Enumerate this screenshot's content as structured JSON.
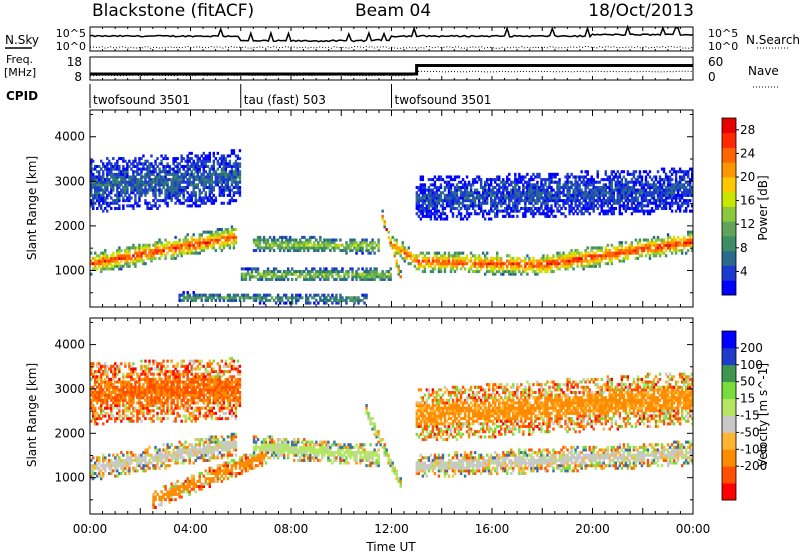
{
  "header": {
    "station": "Blackstone (fitACF)",
    "beam": "Beam 04",
    "date": "18/Oct/2013"
  },
  "top_panels": {
    "noise_left_label": "N.Sky",
    "noise_left_ticks": [
      "10^5",
      "10^0"
    ],
    "noise_right_ticks": [
      "10^5",
      "10^0"
    ],
    "noise_right_label": "N.Search",
    "freq_left_label_line1": "Freq.",
    "freq_left_label_line2": "[MHz]",
    "freq_left_ticks": [
      "18",
      "8"
    ],
    "nave_right_ticks": [
      "60",
      "0"
    ],
    "nave_right_label": "Nave",
    "cpid_label": "CPID",
    "cpid_segments": [
      {
        "start_hour": 0,
        "end_hour": 6,
        "label": "twofsound 3501"
      },
      {
        "start_hour": 6,
        "end_hour": 12,
        "label": "tau (fast) 503"
      },
      {
        "start_hour": 12,
        "end_hour": 24,
        "label": "twofsound 3501"
      }
    ]
  },
  "x_axis": {
    "label": "Time UT",
    "ticks": [
      "00:00",
      "04:00",
      "08:00",
      "12:00",
      "16:00",
      "20:00",
      "00:00"
    ]
  },
  "colors": {
    "power_scale": [
      "#0000ff",
      "#1c3ad0",
      "#2a6a8a",
      "#3c8c64",
      "#5fa45a",
      "#8cc83c",
      "#c8e600",
      "#ffc800",
      "#ff9600",
      "#ff6400",
      "#ff2800",
      "#e60000"
    ],
    "velocity_scale": [
      "#ff0000",
      "#ff5000",
      "#ff8c00",
      "#ffb432",
      "#c8c8c8",
      "#b4e664",
      "#78dc3c",
      "#3c9650",
      "#3c6ea0",
      "#1e3cc8",
      "#0000ff"
    ]
  },
  "chart_data": [
    {
      "type": "heatmap",
      "panel": "power",
      "xlabel": "Time UT",
      "ylabel": "Slant Range [km]",
      "xlim_hours": [
        0,
        24
      ],
      "ylim_km": [
        180,
        4600
      ],
      "yticks": [
        1000,
        2000,
        3000,
        4000
      ],
      "colorbar_label": "Power [dB]",
      "colorbar_ticks": [
        4,
        8,
        12,
        16,
        20,
        24,
        28
      ],
      "colorbar_range": [
        0,
        30
      ],
      "bands": [
        {
          "t_start": 0.0,
          "t_end": 5.8,
          "r_start": 1150,
          "r_end": 1750,
          "width": 500,
          "peak": 26
        },
        {
          "t_start": 6.0,
          "t_end": 12.0,
          "r_start": 900,
          "r_end": 900,
          "width": 300,
          "peak": 14
        },
        {
          "t_start": 6.5,
          "t_end": 11.5,
          "r_start": 1600,
          "r_end": 1550,
          "width": 350,
          "peak": 15
        },
        {
          "t_start": 3.5,
          "t_end": 11.0,
          "r_start": 400,
          "r_end": 350,
          "width": 220,
          "peak": 10
        },
        {
          "t_start": 11.6,
          "t_end": 12.4,
          "r_start": 2300,
          "r_end": 800,
          "width": 220,
          "peak": 26
        },
        {
          "t_start": 12.0,
          "t_end": 13.0,
          "r_start": 1600,
          "r_end": 1200,
          "width": 400,
          "peak": 24
        },
        {
          "t_start": 13.0,
          "t_end": 18.0,
          "r_start": 1200,
          "r_end": 1120,
          "width": 480,
          "peak": 26
        },
        {
          "t_start": 18.0,
          "t_end": 24.0,
          "r_start": 1120,
          "r_end": 1650,
          "width": 480,
          "peak": 27
        },
        {
          "t_start": 0.0,
          "t_end": 6.0,
          "r_start": 2900,
          "r_end": 3100,
          "width": 1200,
          "peak": 6
        },
        {
          "t_start": 13.0,
          "t_end": 24.0,
          "r_start": 2600,
          "r_end": 2800,
          "width": 1000,
          "peak": 5
        }
      ]
    },
    {
      "type": "heatmap",
      "panel": "velocity",
      "xlabel": "Time UT",
      "ylabel": "Slant Range [km]",
      "xlim_hours": [
        0,
        24
      ],
      "ylim_km": [
        180,
        4600
      ],
      "yticks": [
        1000,
        2000,
        3000,
        4000
      ],
      "colorbar_label": "Velocity [m s^-1]",
      "colorbar_ticks": [
        200,
        100,
        50,
        15,
        -15,
        -50,
        -100,
        -200
      ],
      "colorbar_range": [
        -250,
        250
      ],
      "bands": [
        {
          "t_start": 0.0,
          "t_end": 5.8,
          "r_start": 1200,
          "r_end": 1750,
          "width": 550,
          "vel": 0
        },
        {
          "t_start": 2.5,
          "t_end": 7.0,
          "r_start": 500,
          "r_end": 1500,
          "width": 420,
          "vel": -80
        },
        {
          "t_start": 6.5,
          "t_end": 11.5,
          "r_start": 1700,
          "r_end": 1500,
          "width": 500,
          "vel": 30
        },
        {
          "t_start": 11.0,
          "t_end": 12.4,
          "r_start": 2500,
          "r_end": 800,
          "width": 300,
          "vel": 40
        },
        {
          "t_start": 13.0,
          "t_end": 24.0,
          "r_start": 1250,
          "r_end": 1550,
          "width": 550,
          "vel": 0
        },
        {
          "t_start": 0.0,
          "t_end": 6.0,
          "r_start": 2900,
          "r_end": 3000,
          "width": 1400,
          "vel": -100
        },
        {
          "t_start": 13.0,
          "t_end": 24.0,
          "r_start": 2400,
          "r_end": 2800,
          "width": 1200,
          "vel": -60
        }
      ]
    }
  ]
}
